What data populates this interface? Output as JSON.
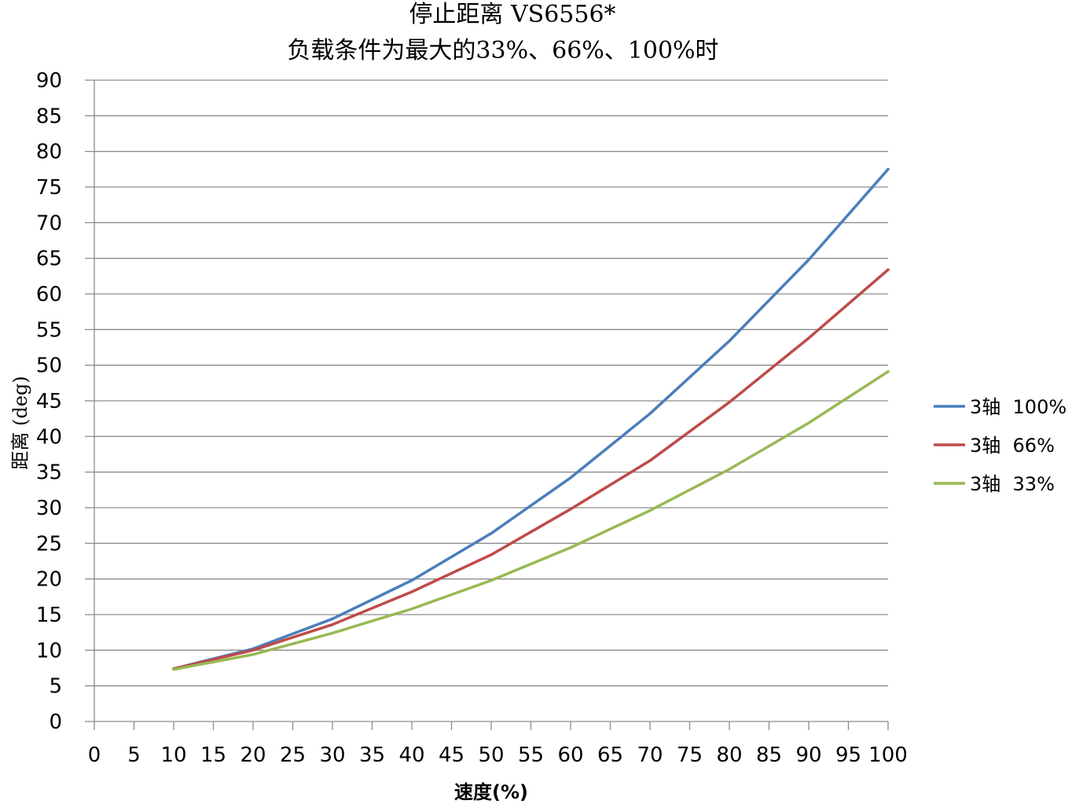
{
  "chart_data": {
    "type": "line",
    "title_lines": [
      "停止距离 VS6556*",
      "负载条件为最大的33%、66%、100%时"
    ],
    "xlabel": "速度(%)",
    "ylabel": "距离 (deg)",
    "xlim": [
      0,
      100
    ],
    "ylim": [
      0,
      90
    ],
    "x_ticks": [
      0,
      5,
      10,
      15,
      20,
      25,
      30,
      35,
      40,
      45,
      50,
      55,
      60,
      65,
      70,
      75,
      80,
      85,
      90,
      95,
      100
    ],
    "y_ticks": [
      0,
      5,
      10,
      15,
      20,
      25,
      30,
      35,
      40,
      45,
      50,
      55,
      60,
      65,
      70,
      75,
      80,
      85,
      90
    ],
    "grid": "horizontal",
    "legend_position": "right",
    "x": [
      10,
      20,
      30,
      40,
      50,
      60,
      70,
      80,
      90,
      100
    ],
    "series": [
      {
        "name": "3轴  100%",
        "color": "#4a7ebb",
        "values": [
          7.4,
          10.2,
          14.4,
          19.8,
          26.4,
          34.2,
          43.2,
          53.4,
          64.8,
          77.5
        ]
      },
      {
        "name": "3轴  66%",
        "color": "#be4b48",
        "values": [
          7.4,
          10.0,
          13.6,
          18.2,
          23.4,
          29.8,
          36.6,
          44.8,
          53.8,
          63.4
        ]
      },
      {
        "name": "3轴  33%",
        "color": "#98b954",
        "values": [
          7.3,
          9.4,
          12.4,
          15.8,
          19.8,
          24.4,
          29.6,
          35.4,
          41.9,
          49.1
        ]
      }
    ]
  }
}
